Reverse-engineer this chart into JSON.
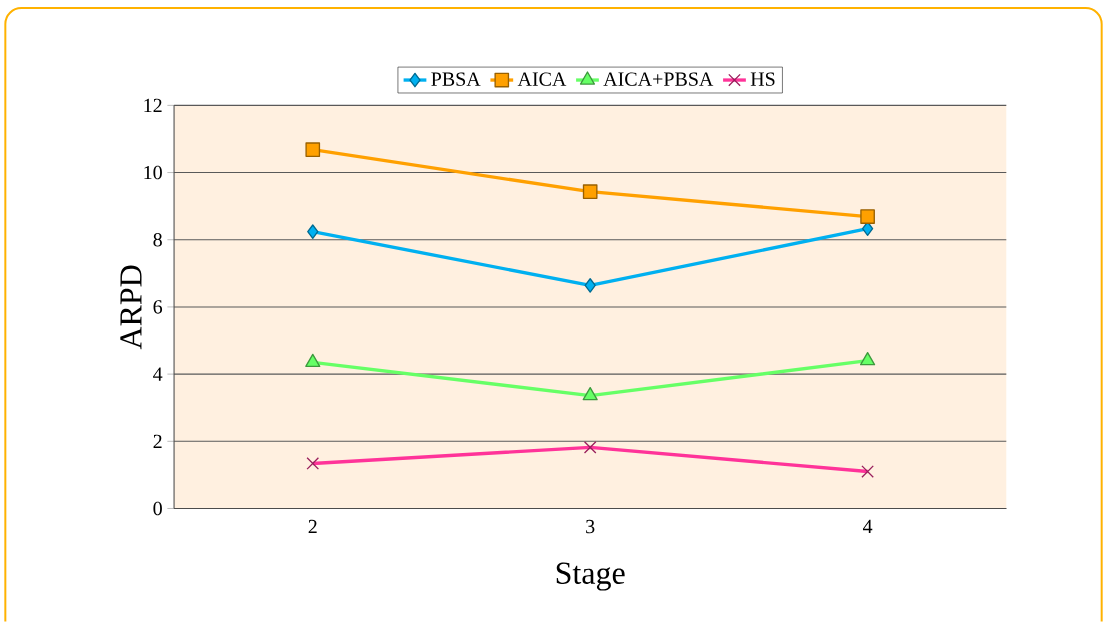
{
  "chart_data": {
    "type": "line",
    "xlabel": "Stage",
    "ylabel": "ARPD",
    "categories": [
      "2",
      "3",
      "4"
    ],
    "series": [
      {
        "name": "PBSA",
        "color": "#00b0f0",
        "marker": "diamond",
        "values": [
          8.24,
          6.64,
          8.33
        ]
      },
      {
        "name": "AICA",
        "color": "#ffa000",
        "marker": "square",
        "values": [
          10.68,
          9.43,
          8.69
        ]
      },
      {
        "name": "AICA+PBSA",
        "color": "#66ff66",
        "marker": "triangle",
        "values": [
          4.35,
          3.36,
          4.4
        ]
      },
      {
        "name": "HS",
        "color": "#ff3399",
        "marker": "cross",
        "values": [
          1.34,
          1.82,
          1.1
        ]
      }
    ],
    "ylim": [
      0,
      12
    ],
    "yticks": [
      0,
      2,
      4,
      6,
      8,
      10,
      12
    ],
    "grid": "y",
    "legend": "top"
  }
}
